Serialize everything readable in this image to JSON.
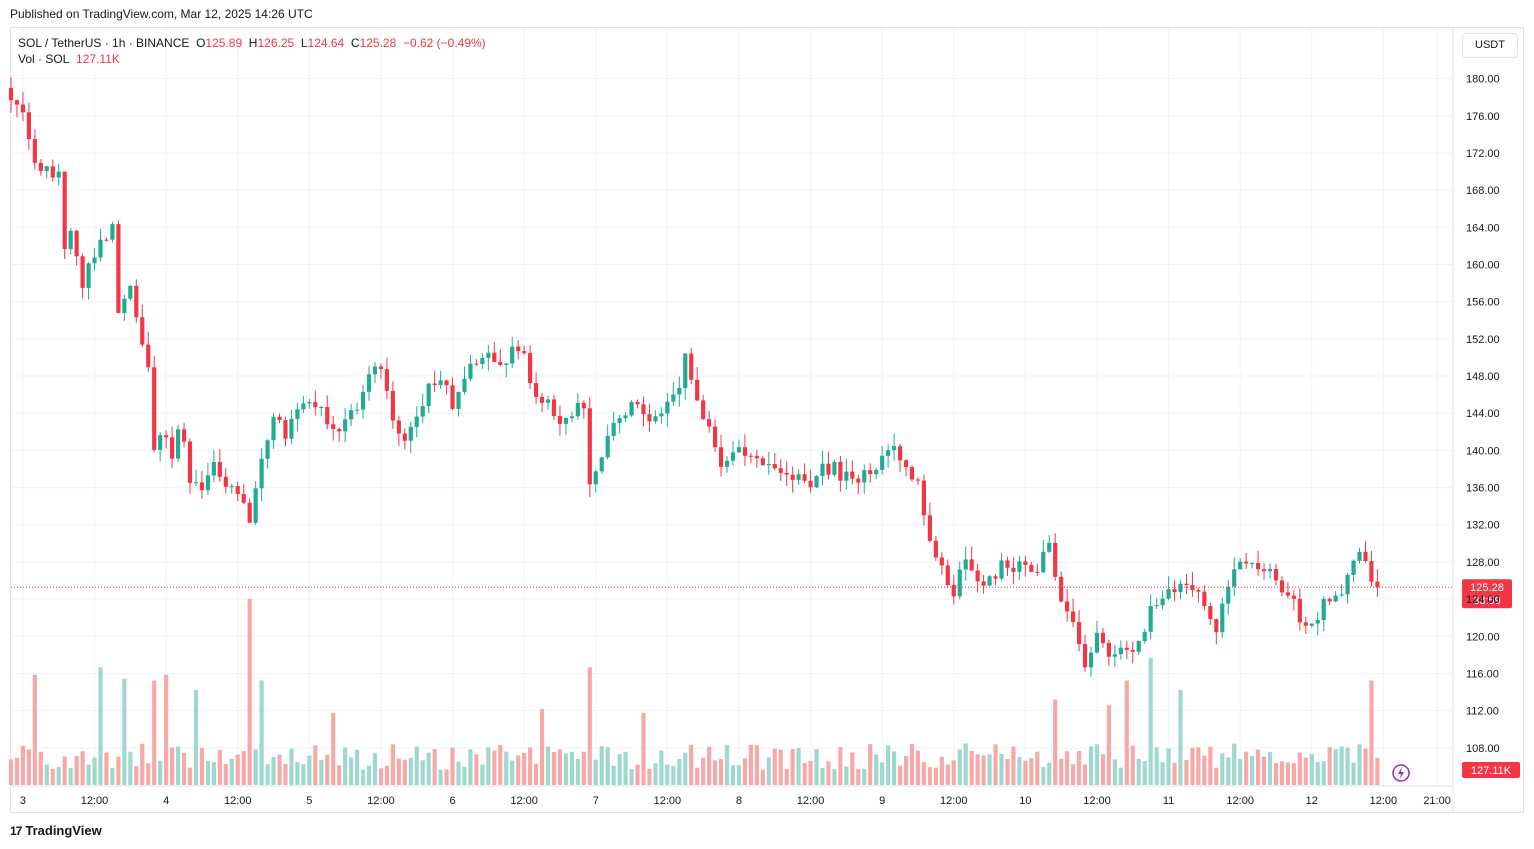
{
  "published": "Published on TradingView.com, Mar 12, 2025 14:26 UTC",
  "legend": {
    "symbol": "SOL / TetherUS · 1h · BINANCE",
    "o_label": "O",
    "o": "125.89",
    "h_label": "H",
    "h": "126.25",
    "l_label": "L",
    "l": "124.64",
    "c_label": "C",
    "c": "125.28",
    "change": "−0.62 (−0.49%)"
  },
  "volume_legend": {
    "label": "Vol · SOL",
    "value": "127.11K"
  },
  "currency_button": "USDT",
  "footer": {
    "logo_mark": "17",
    "brand": "TradingView"
  },
  "colors": {
    "up": "#22ab94",
    "down": "#f23645",
    "up_volume": "#9ed8cf",
    "down_volume": "#f7a9a9",
    "price_line": "#f23645"
  },
  "chart_data": {
    "type": "candlestick",
    "symbol": "SOL/USDT",
    "interval": "1h",
    "ylim": [
      104,
      182
    ],
    "yticks": [
      108,
      112,
      116,
      120,
      124,
      128,
      132,
      136,
      140,
      144,
      148,
      152,
      156,
      160,
      164,
      168,
      172,
      176,
      180
    ],
    "ytick_labels": [
      "108.00",
      "112.00",
      "116.00",
      "120.00",
      "124.00",
      "128.00",
      "132.00",
      "136.00",
      "140.00",
      "144.00",
      "148.00",
      "152.00",
      "156.00",
      "160.00",
      "164.00",
      "168.00",
      "172.00",
      "176.00",
      "180.00"
    ],
    "x_range_hours": [
      -2,
      239.5
    ],
    "xticks": [
      {
        "h": 0,
        "label": "3"
      },
      {
        "h": 12,
        "label": "12:00"
      },
      {
        "h": 24,
        "label": "4"
      },
      {
        "h": 36,
        "label": "12:00"
      },
      {
        "h": 48,
        "label": "5"
      },
      {
        "h": 60,
        "label": "12:00"
      },
      {
        "h": 72,
        "label": "6"
      },
      {
        "h": 84,
        "label": "12:00"
      },
      {
        "h": 96,
        "label": "7"
      },
      {
        "h": 108,
        "label": "12:00"
      },
      {
        "h": 120,
        "label": "8"
      },
      {
        "h": 132,
        "label": "12:00"
      },
      {
        "h": 144,
        "label": "9"
      },
      {
        "h": 156,
        "label": "12:00"
      },
      {
        "h": 168,
        "label": "10"
      },
      {
        "h": 180,
        "label": "12:00"
      },
      {
        "h": 192,
        "label": "11"
      },
      {
        "h": 204,
        "label": "12:00"
      },
      {
        "h": 216,
        "label": "12"
      },
      {
        "h": 228,
        "label": "12:00"
      },
      {
        "h": 237,
        "label": "21:00"
      }
    ],
    "last_price": 125.28,
    "last_price_label": "125.28",
    "countdown": "33:59",
    "last_volume_label": "127.11K",
    "anchors": [
      [
        -2,
        178
      ],
      [
        0,
        176
      ],
      [
        2,
        171
      ],
      [
        4,
        170
      ],
      [
        6,
        170
      ],
      [
        7,
        162
      ],
      [
        8,
        163
      ],
      [
        10,
        158
      ],
      [
        12,
        161
      ],
      [
        14,
        163
      ],
      [
        15,
        165
      ],
      [
        16,
        155
      ],
      [
        18,
        157
      ],
      [
        20,
        152
      ],
      [
        21,
        149
      ],
      [
        22,
        140
      ],
      [
        24,
        142
      ],
      [
        25,
        139
      ],
      [
        26,
        143
      ],
      [
        27,
        141
      ],
      [
        28,
        137
      ],
      [
        30,
        136
      ],
      [
        32,
        138
      ],
      [
        34,
        136
      ],
      [
        36,
        136
      ],
      [
        37,
        134
      ],
      [
        38,
        133
      ],
      [
        40,
        139
      ],
      [
        42,
        143
      ],
      [
        44,
        142
      ],
      [
        46,
        144
      ],
      [
        48,
        145
      ],
      [
        50,
        144
      ],
      [
        52,
        142
      ],
      [
        54,
        143
      ],
      [
        56,
        145
      ],
      [
        58,
        148
      ],
      [
        60,
        149
      ],
      [
        62,
        143
      ],
      [
        64,
        141
      ],
      [
        66,
        144
      ],
      [
        68,
        147
      ],
      [
        70,
        148
      ],
      [
        72,
        145
      ],
      [
        74,
        148
      ],
      [
        76,
        150
      ],
      [
        78,
        150
      ],
      [
        80,
        149
      ],
      [
        82,
        151
      ],
      [
        84,
        150
      ],
      [
        86,
        145
      ],
      [
        88,
        146
      ],
      [
        90,
        143
      ],
      [
        92,
        144
      ],
      [
        94,
        145
      ],
      [
        95,
        136
      ],
      [
        96,
        138
      ],
      [
        98,
        141
      ],
      [
        100,
        144
      ],
      [
        102,
        145
      ],
      [
        104,
        144
      ],
      [
        106,
        143
      ],
      [
        108,
        146
      ],
      [
        110,
        146
      ],
      [
        111,
        150
      ],
      [
        113,
        146
      ],
      [
        115,
        142
      ],
      [
        117,
        139
      ],
      [
        119,
        140
      ],
      [
        121,
        140
      ],
      [
        124,
        138
      ],
      [
        126,
        138
      ],
      [
        128,
        137
      ],
      [
        130,
        137
      ],
      [
        132,
        136
      ],
      [
        134,
        138
      ],
      [
        136,
        138
      ],
      [
        138,
        137
      ],
      [
        140,
        137
      ],
      [
        142,
        138
      ],
      [
        144,
        139
      ],
      [
        146,
        140
      ],
      [
        148,
        138
      ],
      [
        150,
        136
      ],
      [
        152,
        131
      ],
      [
        154,
        127
      ],
      [
        156,
        125
      ],
      [
        158,
        128
      ],
      [
        160,
        126
      ],
      [
        162,
        126
      ],
      [
        164,
        128
      ],
      [
        166,
        127
      ],
      [
        168,
        128
      ],
      [
        170,
        127
      ],
      [
        172,
        130
      ],
      [
        174,
        123
      ],
      [
        176,
        121
      ],
      [
        178,
        117
      ],
      [
        180,
        120
      ],
      [
        182,
        118
      ],
      [
        184,
        119
      ],
      [
        186,
        119
      ],
      [
        188,
        121
      ],
      [
        190,
        124
      ],
      [
        192,
        125
      ],
      [
        194,
        125
      ],
      [
        196,
        125
      ],
      [
        198,
        124
      ],
      [
        200,
        120
      ],
      [
        202,
        126
      ],
      [
        204,
        128
      ],
      [
        206,
        128
      ],
      [
        208,
        127
      ],
      [
        210,
        126
      ],
      [
        212,
        125
      ],
      [
        214,
        122
      ],
      [
        216,
        121
      ],
      [
        218,
        124
      ],
      [
        220,
        124
      ],
      [
        222,
        126
      ],
      [
        224,
        129
      ],
      [
        226,
        126
      ],
      [
        227,
        125.28
      ]
    ],
    "volume_peaks": [
      [
        2,
        0.58
      ],
      [
        13,
        0.62
      ],
      [
        17,
        0.56
      ],
      [
        22,
        0.55
      ],
      [
        24,
        0.58
      ],
      [
        38,
        0.98
      ],
      [
        40,
        0.55
      ],
      [
        95,
        0.62
      ],
      [
        185,
        0.55
      ],
      [
        189,
        0.67
      ],
      [
        226,
        0.55
      ],
      [
        29,
        0.5
      ],
      [
        52,
        0.38
      ],
      [
        87,
        0.4
      ],
      [
        104,
        0.38
      ],
      [
        173,
        0.45
      ],
      [
        182,
        0.42
      ],
      [
        194,
        0.5
      ]
    ]
  }
}
